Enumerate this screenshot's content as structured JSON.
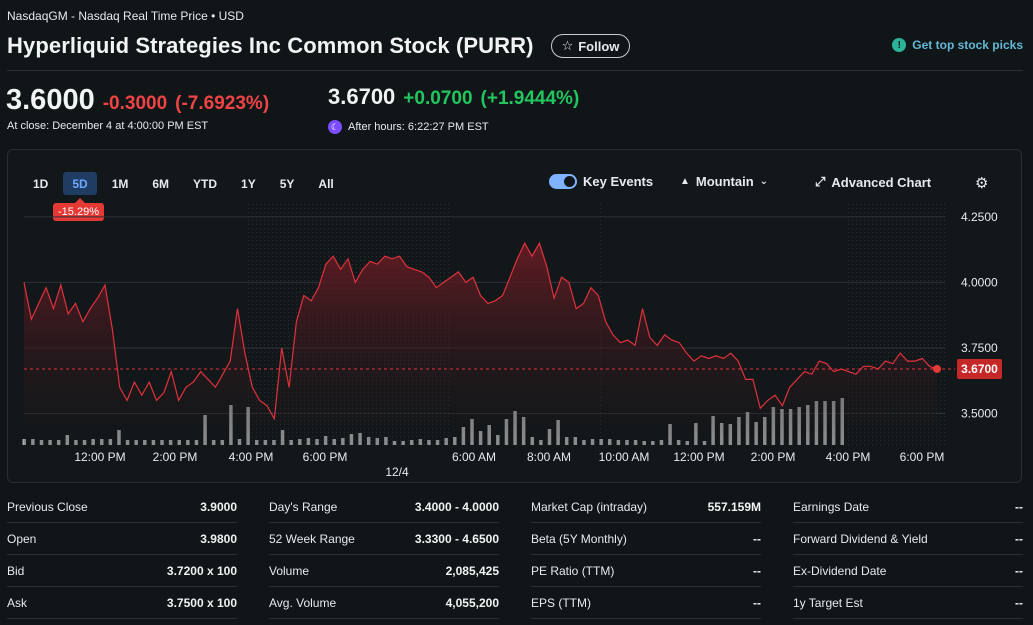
{
  "header": {
    "exchange": "NasdaqGM - Nasdaq Real Time Price • USD",
    "title": "Hyperliquid Strategies Inc Common Stock (PURR)",
    "follow_label": "Follow",
    "picks_label": "Get top stock picks"
  },
  "quote": {
    "price": "3.6000",
    "change": "-0.3000",
    "change_pct": "(-7.6923%)",
    "close_note": "At close: December 4 at 4:00:00 PM EST",
    "after_price": "3.6700",
    "after_change": "+0.0700",
    "after_change_pct": "(+1.9444%)",
    "after_note": "After hours: 6:22:27 PM EST"
  },
  "chart_toolbar": {
    "timeframes": [
      "1D",
      "5D",
      "1M",
      "6M",
      "YTD",
      "1Y",
      "5Y",
      "All"
    ],
    "active_timeframe": "5D",
    "performance_badge": "-15.29%",
    "key_events_label": "Key Events",
    "chart_type_label": "Mountain",
    "advanced_label": "Advanced Chart"
  },
  "chart_data": {
    "type": "area",
    "y_ticks": [
      "4.2500",
      "4.0000",
      "3.7500",
      "3.5000"
    ],
    "ylim": [
      3.38,
      4.28
    ],
    "x_ticks": [
      "12:00 PM",
      "2:00 PM",
      "4:00 PM",
      "6:00 PM",
      "6:00 AM",
      "8:00 AM",
      "10:00 AM",
      "12:00 PM",
      "2:00 PM",
      "4:00 PM",
      "6:00 PM"
    ],
    "day_label": "12/4",
    "current_price_label": "3.6700",
    "reference_price": 3.67,
    "colors": {
      "line": "#e0313d",
      "fill": "#5a1a20",
      "volume": "#a9abad",
      "price_badge": "#c62828"
    },
    "price": [
      4.0,
      3.86,
      3.92,
      3.98,
      3.9,
      3.99,
      3.88,
      3.92,
      3.85,
      3.9,
      3.94,
      3.99,
      3.82,
      3.6,
      3.55,
      3.62,
      3.57,
      3.62,
      3.55,
      3.58,
      3.66,
      3.55,
      3.6,
      3.62,
      3.66,
      3.63,
      3.6,
      3.65,
      3.7,
      3.9,
      3.73,
      3.6,
      3.55,
      3.53,
      3.48,
      3.75,
      3.6,
      3.85,
      3.95,
      3.93,
      3.98,
      4.07,
      4.1,
      4.05,
      4.09,
      4.0,
      4.05,
      4.08,
      4.07,
      4.1,
      4.09,
      4.1,
      4.06,
      4.05,
      4.04,
      4.02,
      3.98,
      4.0,
      4.02,
      4.04,
      4.0,
      4.02,
      3.95,
      3.92,
      3.93,
      3.95,
      4.02,
      4.09,
      4.15,
      4.1,
      4.15,
      4.06,
      3.94,
      4.02,
      4.0,
      3.9,
      3.92,
      3.98,
      3.95,
      3.85,
      3.8,
      3.77,
      3.78,
      3.76,
      3.9,
      3.79,
      3.76,
      3.8,
      3.78,
      3.77,
      3.73,
      3.7,
      3.72,
      3.71,
      3.72,
      3.71,
      3.73,
      3.7,
      3.63,
      3.63,
      3.52,
      3.55,
      3.57,
      3.53,
      3.6,
      3.63,
      3.66,
      3.65,
      3.7,
      3.69,
      3.66,
      3.67,
      3.66,
      3.65,
      3.68,
      3.68,
      3.67,
      3.7,
      3.69,
      3.73,
      3.7,
      3.7,
      3.71,
      3.68,
      3.67
    ],
    "volume": [
      0.06,
      0.06,
      0.05,
      0.05,
      0.05,
      0.1,
      0.05,
      0.05,
      0.06,
      0.06,
      0.06,
      0.15,
      0.05,
      0.05,
      0.05,
      0.05,
      0.05,
      0.05,
      0.05,
      0.05,
      0.05,
      0.3,
      0.05,
      0.05,
      0.4,
      0.06,
      0.38,
      0.05,
      0.05,
      0.05,
      0.15,
      0.05,
      0.06,
      0.07,
      0.06,
      0.09,
      0.06,
      0.07,
      0.11,
      0.12,
      0.08,
      0.07,
      0.08,
      0.04,
      0.04,
      0.05,
      0.06,
      0.05,
      0.05,
      0.07,
      0.08,
      0.18,
      0.26,
      0.14,
      0.2,
      0.1,
      0.26,
      0.34,
      0.28,
      0.08,
      0.05,
      0.16,
      0.25,
      0.08,
      0.08,
      0.05,
      0.06,
      0.06,
      0.06,
      0.05,
      0.05,
      0.05,
      0.04,
      0.04,
      0.05,
      0.21,
      0.05,
      0.04,
      0.22,
      0.04,
      0.29,
      0.22,
      0.21,
      0.28,
      0.33,
      0.23,
      0.28,
      0.38,
      0.36,
      0.36,
      0.38,
      0.4,
      0.44,
      0.44,
      0.44,
      0.47
    ]
  },
  "stats": [
    [
      {
        "label": "Previous Close",
        "value": "3.9000"
      },
      {
        "label": "Open",
        "value": "3.9800"
      },
      {
        "label": "Bid",
        "value": "3.7200 x 100"
      },
      {
        "label": "Ask",
        "value": "3.7500 x 100"
      }
    ],
    [
      {
        "label": "Day's Range",
        "value": "3.4000 - 4.0000"
      },
      {
        "label": "52 Week Range",
        "value": "3.3300 - 4.6500"
      },
      {
        "label": "Volume",
        "value": "2,085,425"
      },
      {
        "label": "Avg. Volume",
        "value": "4,055,200"
      }
    ],
    [
      {
        "label": "Market Cap (intraday)",
        "value": "557.159M"
      },
      {
        "label": "Beta (5Y Monthly)",
        "value": "--"
      },
      {
        "label": "PE Ratio (TTM)",
        "value": "--"
      },
      {
        "label": "EPS (TTM)",
        "value": "--"
      }
    ],
    [
      {
        "label": "Earnings Date",
        "value": "--"
      },
      {
        "label": "Forward Dividend & Yield",
        "value": "--"
      },
      {
        "label": "Ex-Dividend Date",
        "value": "--"
      },
      {
        "label": "1y Target Est",
        "value": "--"
      }
    ]
  ]
}
